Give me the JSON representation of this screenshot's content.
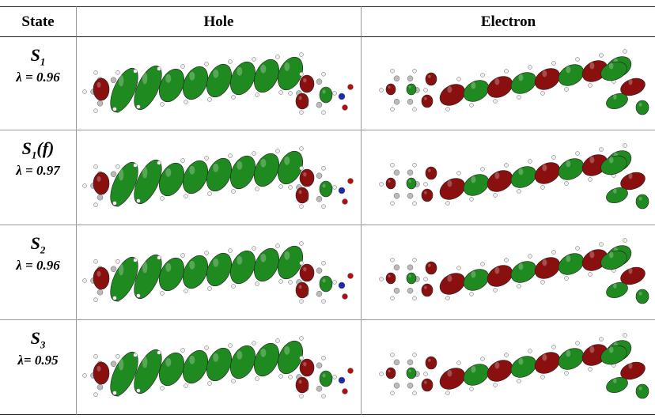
{
  "table": {
    "header": [
      "State",
      "Hole",
      "Electron"
    ],
    "rows": [
      {
        "state": "S",
        "sub": "1",
        "suffix": "",
        "lambda": "λ = 0.96"
      },
      {
        "state": "S",
        "sub": "1",
        "suffix": "(f)",
        "lambda": "λ = 0.97"
      },
      {
        "state": "S",
        "sub": "2",
        "suffix": "",
        "lambda": "λ = 0.96"
      },
      {
        "state": "S",
        "sub": "3",
        "suffix": "",
        "lambda": "λ= 0.95"
      }
    ]
  }
}
